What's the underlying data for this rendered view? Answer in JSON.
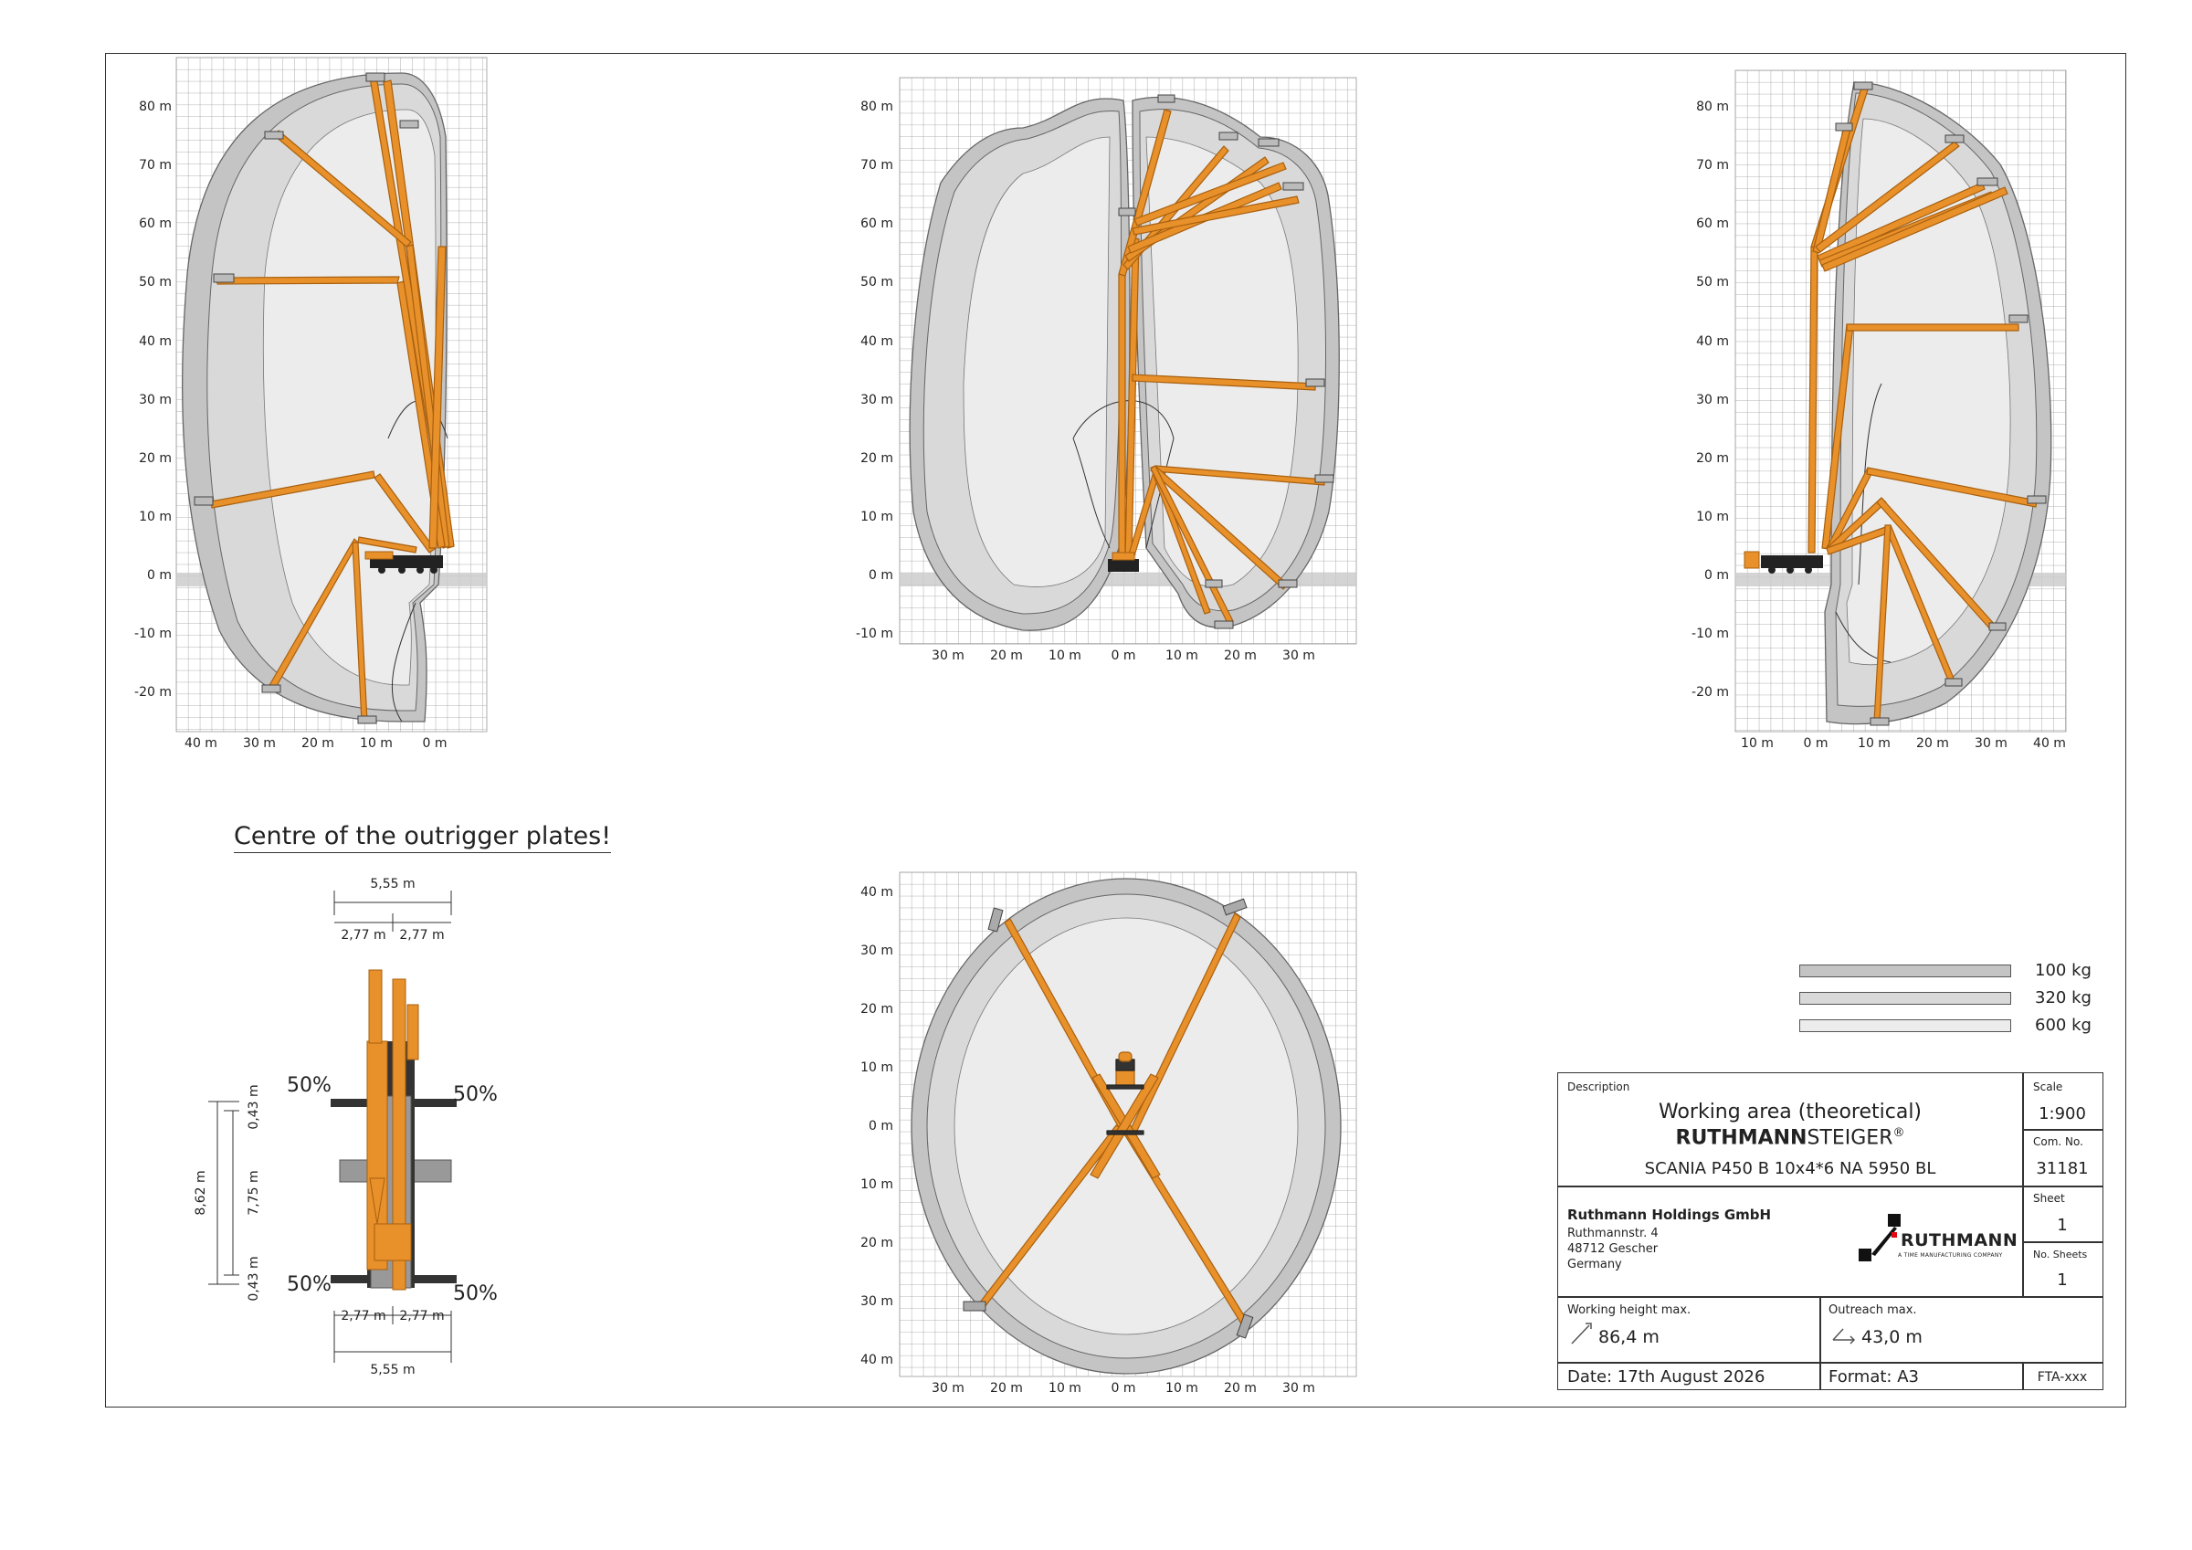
{
  "charts": {
    "side_left": {
      "y_ticks": [
        "80 m",
        "70 m",
        "60 m",
        "50 m",
        "40 m",
        "30 m",
        "20 m",
        "10 m",
        "0 m",
        "-10 m",
        "-20 m"
      ],
      "x_ticks": [
        "40 m",
        "30 m",
        "20 m",
        "10 m",
        "0 m"
      ]
    },
    "side_middle": {
      "y_ticks": [
        "80 m",
        "70 m",
        "60 m",
        "50 m",
        "40 m",
        "30 m",
        "20 m",
        "10 m",
        "0 m",
        "-10 m"
      ],
      "x_ticks": [
        "30 m",
        "20 m",
        "10 m",
        "0 m",
        "10 m",
        "20 m",
        "30 m"
      ]
    },
    "side_right": {
      "y_ticks": [
        "80 m",
        "70 m",
        "60 m",
        "50 m",
        "40 m",
        "30 m",
        "20 m",
        "10 m",
        "0 m",
        "-10 m",
        "-20 m"
      ],
      "x_ticks": [
        "10 m",
        "0 m",
        "10 m",
        "20 m",
        "30 m",
        "40 m"
      ]
    },
    "top_view": {
      "y_ticks": [
        "40 m",
        "30 m",
        "20 m",
        "10 m",
        "0 m",
        "10 m",
        "20 m",
        "30 m",
        "40 m"
      ],
      "x_ticks": [
        "30 m",
        "20 m",
        "10 m",
        "0 m",
        "10 m",
        "20 m",
        "30 m"
      ]
    }
  },
  "outrigger": {
    "title": "Centre of the outrigger plates!",
    "top_total": "5,55 m",
    "top_left": "2,77 m",
    "top_right": "2,77 m",
    "bottom_left": "2,77 m",
    "bottom_right": "2,77 m",
    "bottom_total": "5,55 m",
    "total_length": "8,62 m",
    "inner_length": "7,75 m",
    "offset_top": "0,43 m",
    "offset_bottom": "0,43 m",
    "load_tl": "50%",
    "load_tr": "50%",
    "load_bl": "50%",
    "load_br": "50%"
  },
  "legend": [
    {
      "label": "100 kg",
      "color": "#c4c4c4"
    },
    {
      "label": "320 kg",
      "color": "#d9d9d9"
    },
    {
      "label": "600 kg",
      "color": "#ececec"
    }
  ],
  "title_block": {
    "description_label": "Description",
    "description_line1": "Working area (theoretical)",
    "brand_bold": "RUTHMANN",
    "brand_regular": "STEIGER",
    "brand_mark": "®",
    "model": "SCANIA P450 B 10x4*6 NA 5950 BL",
    "scale_label": "Scale",
    "scale_value": "1:900",
    "comno_label": "Com. No.",
    "comno_value": "31181",
    "sheet_label": "Sheet",
    "sheet_value": "1",
    "nosheets_label": "No. Sheets",
    "nosheets_value": "1",
    "company_name": "Ruthmann Holdings GmbH",
    "company_street": "Ruthmannstr. 4",
    "company_city": "48712 Gescher",
    "company_country": "Germany",
    "logo_text": "RUTHMANN",
    "logo_sub": "A TIME MANUFACTURING COMPANY",
    "working_height_label": "Working height max.",
    "working_height_value": "86,4 m",
    "outreach_label": "Outreach max.",
    "outreach_value": "43,0 m",
    "date": "Date: 17th August 2026",
    "format": "Format: A3",
    "doc_code": "FTA-xxx"
  },
  "colors": {
    "boom": "#e8902a",
    "boom_stroke": "#a8600f",
    "envelope_outer": "#c4c4c4",
    "envelope_mid": "#d9d9d9",
    "envelope_inner": "#ececec",
    "grid": "#8a8a8a"
  }
}
